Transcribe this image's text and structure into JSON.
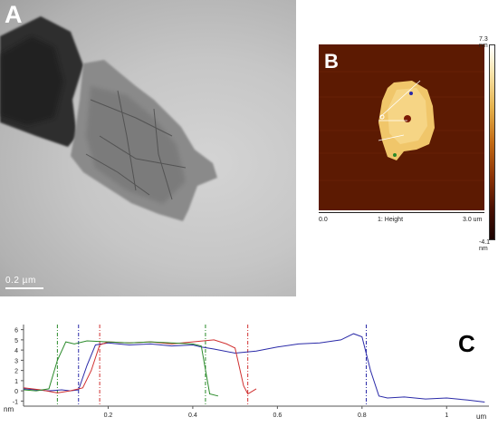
{
  "panel_a": {
    "label": "A",
    "scale_text": "0.2 µm"
  },
  "panel_b": {
    "label": "B",
    "colorbar_max": "7.3 nm",
    "colorbar_min": "-4.1 nm",
    "x_start": "0.0",
    "x_end": "3.0 um",
    "channel": "1: Height"
  },
  "panel_c": {
    "label": "C",
    "y_unit": "nm",
    "x_unit": "um",
    "y_ticks": [
      "6",
      "5",
      "4",
      "3",
      "2",
      "1",
      "0",
      "-1"
    ],
    "x_ticks": [
      "0.2",
      "0.4",
      "0.6",
      "0.8",
      "1"
    ]
  },
  "chart_data": {
    "type": "line",
    "xlabel": "um",
    "ylabel": "nm",
    "xlim": [
      0,
      1.1
    ],
    "ylim": [
      -1.5,
      6.5
    ],
    "series": [
      {
        "color": "#2a2aa8",
        "x": [
          0,
          0.03,
          0.06,
          0.09,
          0.11,
          0.13,
          0.15,
          0.17,
          0.2,
          0.25,
          0.3,
          0.35,
          0.4,
          0.42,
          0.45,
          0.5,
          0.55,
          0.6,
          0.65,
          0.7,
          0.75,
          0.78,
          0.8,
          0.82,
          0.84,
          0.86,
          0.9,
          0.95,
          1.0,
          1.05,
          1.09
        ],
        "y": [
          0.2,
          0.1,
          0.0,
          0.1,
          0.0,
          0.1,
          2.5,
          4.5,
          4.7,
          4.5,
          4.6,
          4.4,
          4.5,
          4.3,
          4.1,
          3.7,
          3.9,
          4.3,
          4.6,
          4.7,
          5.0,
          5.6,
          5.3,
          2.0,
          -0.5,
          -0.7,
          -0.6,
          -0.8,
          -0.7,
          -0.9,
          -1.1
        ]
      },
      {
        "color": "#d03030",
        "x": [
          0,
          0.04,
          0.08,
          0.11,
          0.14,
          0.16,
          0.18,
          0.2,
          0.25,
          0.3,
          0.35,
          0.4,
          0.45,
          0.48,
          0.5,
          0.52,
          0.53,
          0.55
        ],
        "y": [
          0.3,
          0.1,
          -0.2,
          0.0,
          0.3,
          2.0,
          4.5,
          4.8,
          4.7,
          4.8,
          4.6,
          4.8,
          5.0,
          4.6,
          4.2,
          0.5,
          -0.3,
          0.2
        ]
      },
      {
        "color": "#2a8a2a",
        "x": [
          0,
          0.03,
          0.06,
          0.08,
          0.1,
          0.12,
          0.15,
          0.2,
          0.25,
          0.3,
          0.35,
          0.4,
          0.42,
          0.44,
          0.46
        ],
        "y": [
          0.1,
          0.0,
          0.2,
          3.0,
          4.8,
          4.6,
          4.9,
          4.8,
          4.7,
          4.8,
          4.7,
          4.6,
          4.4,
          -0.3,
          -0.5
        ]
      }
    ],
    "markers": [
      {
        "x": 0.08,
        "color": "#2a8a2a"
      },
      {
        "x": 0.13,
        "color": "#2a2aa8"
      },
      {
        "x": 0.18,
        "color": "#d03030"
      },
      {
        "x": 0.43,
        "color": "#2a8a2a"
      },
      {
        "x": 0.53,
        "color": "#d03030"
      },
      {
        "x": 0.81,
        "color": "#2a2aa8"
      }
    ]
  }
}
